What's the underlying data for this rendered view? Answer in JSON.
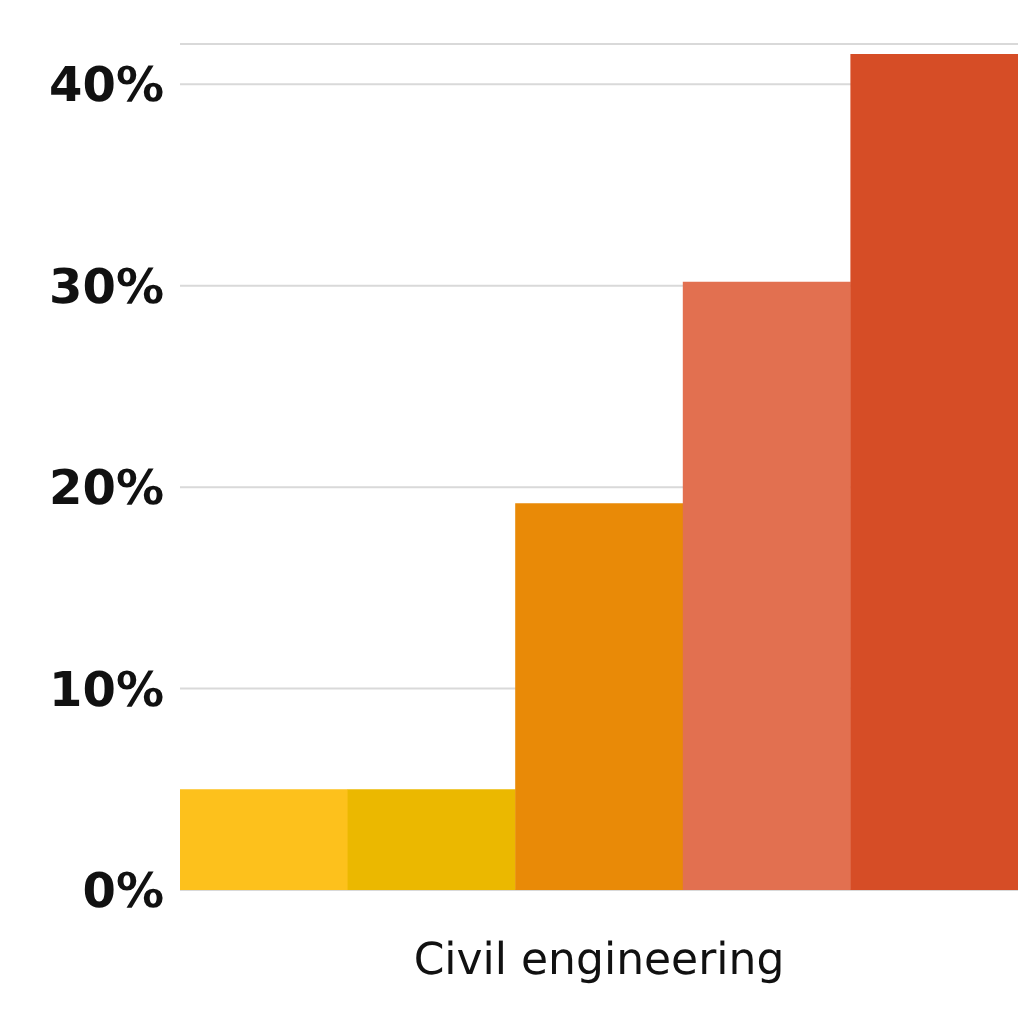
{
  "chart_data": {
    "type": "bar",
    "categories": [
      null,
      null,
      null,
      null,
      null
    ],
    "values": [
      5,
      5,
      19.2,
      30.2,
      41.5
    ],
    "colors": [
      "#fdc11c",
      "#ebb800",
      "#e98a07",
      "#e27050",
      "#d64d26"
    ],
    "xlabel": "Civil engineering",
    "ylim": [
      0,
      42
    ],
    "yticks": [
      {
        "value": 0,
        "label": "0%"
      },
      {
        "value": 10,
        "label": "10%"
      },
      {
        "value": 20,
        "label": "20%"
      },
      {
        "value": 30,
        "label": "30%"
      },
      {
        "value": 40,
        "label": "40%"
      }
    ],
    "grid": "y",
    "legend": false
  }
}
